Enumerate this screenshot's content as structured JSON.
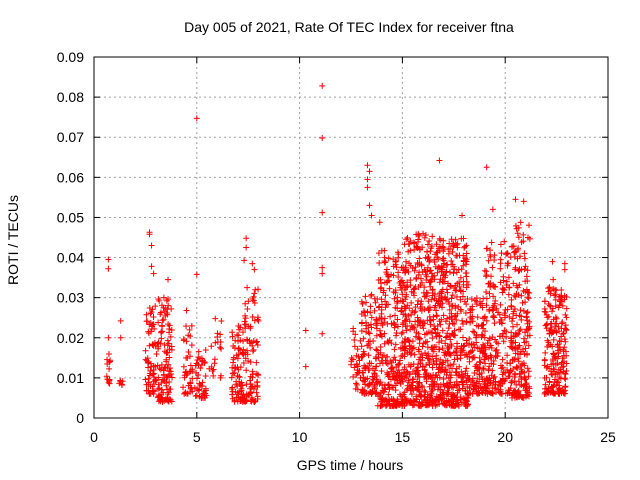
{
  "chart_data": {
    "type": "scatter",
    "title": "Day 005 of 2021, Rate Of TEC Index for receiver ftna",
    "xlabel": "GPS time / hours",
    "ylabel": "ROTI / TECUs",
    "xlim": [
      0,
      25
    ],
    "ylim": [
      0,
      0.09
    ],
    "xticks": [
      0,
      5,
      10,
      15,
      20,
      25
    ],
    "yticks": [
      0,
      0.01,
      0.02,
      0.03,
      0.04,
      0.05,
      0.06,
      0.07,
      0.08,
      0.09
    ],
    "xtick_labels": [
      "0",
      "5",
      "10",
      "15",
      "20",
      "25"
    ],
    "ytick_labels": [
      "0",
      "0.01",
      "0.02",
      "0.03",
      "0.04",
      "0.05",
      "0.06",
      "0.07",
      "0.08",
      "0.09"
    ],
    "grid": true,
    "marker": "+",
    "series_color": "#ff0000",
    "outliers": [
      {
        "x": 0.7,
        "y": 0.0395
      },
      {
        "x": 0.7,
        "y": 0.0372
      },
      {
        "x": 0.7,
        "y": 0.02
      },
      {
        "x": 1.3,
        "y": 0.0242
      },
      {
        "x": 1.3,
        "y": 0.02
      },
      {
        "x": 2.7,
        "y": 0.0463
      },
      {
        "x": 2.7,
        "y": 0.0458
      },
      {
        "x": 2.8,
        "y": 0.043
      },
      {
        "x": 2.8,
        "y": 0.0378
      },
      {
        "x": 2.9,
        "y": 0.036
      },
      {
        "x": 3.4,
        "y": 0.03
      },
      {
        "x": 3.6,
        "y": 0.0345
      },
      {
        "x": 4.5,
        "y": 0.0268
      },
      {
        "x": 5.0,
        "y": 0.0747
      },
      {
        "x": 5.0,
        "y": 0.0358
      },
      {
        "x": 7.4,
        "y": 0.0448
      },
      {
        "x": 7.4,
        "y": 0.0425
      },
      {
        "x": 7.3,
        "y": 0.0393
      },
      {
        "x": 7.7,
        "y": 0.0385
      },
      {
        "x": 7.8,
        "y": 0.037
      },
      {
        "x": 10.3,
        "y": 0.0218
      },
      {
        "x": 10.3,
        "y": 0.0128
      },
      {
        "x": 11.1,
        "y": 0.0828
      },
      {
        "x": 11.1,
        "y": 0.0698
      },
      {
        "x": 11.1,
        "y": 0.0512
      },
      {
        "x": 11.1,
        "y": 0.0375
      },
      {
        "x": 11.1,
        "y": 0.036
      },
      {
        "x": 11.1,
        "y": 0.021
      },
      {
        "x": 13.3,
        "y": 0.063
      },
      {
        "x": 13.4,
        "y": 0.0615
      },
      {
        "x": 13.3,
        "y": 0.0595
      },
      {
        "x": 13.3,
        "y": 0.0575
      },
      {
        "x": 13.4,
        "y": 0.053
      },
      {
        "x": 13.5,
        "y": 0.0505
      },
      {
        "x": 13.9,
        "y": 0.0488
      },
      {
        "x": 16.8,
        "y": 0.0642
      },
      {
        "x": 17.9,
        "y": 0.0505
      },
      {
        "x": 19.1,
        "y": 0.0625
      },
      {
        "x": 19.4,
        "y": 0.052
      },
      {
        "x": 20.5,
        "y": 0.0545
      },
      {
        "x": 20.9,
        "y": 0.054
      },
      {
        "x": 22.3,
        "y": 0.039
      },
      {
        "x": 22.9,
        "y": 0.0385
      },
      {
        "x": 22.9,
        "y": 0.037
      }
    ],
    "clusters": [
      {
        "xmin": 0.6,
        "xmax": 0.8,
        "ymin": 0.008,
        "ymax": 0.016,
        "n": 14
      },
      {
        "xmin": 1.2,
        "xmax": 1.4,
        "ymin": 0.008,
        "ymax": 0.012,
        "n": 6
      },
      {
        "xmin": 2.5,
        "xmax": 3.1,
        "ymin": 0.006,
        "ymax": 0.028,
        "n": 70
      },
      {
        "xmin": 3.1,
        "xmax": 3.8,
        "ymin": 0.004,
        "ymax": 0.03,
        "n": 110
      },
      {
        "xmin": 4.3,
        "xmax": 4.8,
        "ymin": 0.006,
        "ymax": 0.024,
        "n": 40
      },
      {
        "xmin": 4.9,
        "xmax": 5.5,
        "ymin": 0.005,
        "ymax": 0.017,
        "n": 45
      },
      {
        "xmin": 5.6,
        "xmax": 6.2,
        "ymin": 0.01,
        "ymax": 0.025,
        "n": 20
      },
      {
        "xmin": 6.7,
        "xmax": 7.3,
        "ymin": 0.004,
        "ymax": 0.024,
        "n": 80
      },
      {
        "xmin": 7.3,
        "xmax": 8.0,
        "ymin": 0.004,
        "ymax": 0.034,
        "n": 90
      },
      {
        "xmin": 12.5,
        "xmax": 13.0,
        "ymin": 0.007,
        "ymax": 0.023,
        "n": 30
      },
      {
        "xmin": 13.0,
        "xmax": 13.8,
        "ymin": 0.006,
        "ymax": 0.032,
        "n": 120
      },
      {
        "xmin": 13.8,
        "xmax": 15.0,
        "ymin": 0.003,
        "ymax": 0.042,
        "n": 250
      },
      {
        "xmin": 15.0,
        "xmax": 16.5,
        "ymin": 0.003,
        "ymax": 0.046,
        "n": 400
      },
      {
        "xmin": 16.5,
        "xmax": 18.2,
        "ymin": 0.003,
        "ymax": 0.045,
        "n": 450
      },
      {
        "xmin": 18.2,
        "xmax": 19.0,
        "ymin": 0.006,
        "ymax": 0.03,
        "n": 120
      },
      {
        "xmin": 19.0,
        "xmax": 20.3,
        "ymin": 0.006,
        "ymax": 0.044,
        "n": 220
      },
      {
        "xmin": 20.3,
        "xmax": 21.2,
        "ymin": 0.005,
        "ymax": 0.049,
        "n": 200
      },
      {
        "xmin": 21.9,
        "xmax": 22.4,
        "ymin": 0.006,
        "ymax": 0.035,
        "n": 90
      },
      {
        "xmin": 22.4,
        "xmax": 23.0,
        "ymin": 0.006,
        "ymax": 0.032,
        "n": 120
      }
    ]
  }
}
